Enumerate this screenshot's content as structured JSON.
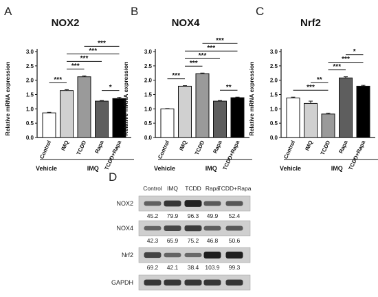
{
  "panels": {
    "A": "A",
    "B": "B",
    "C": "C",
    "D": "D"
  },
  "chart_data": [
    {
      "type": "bar",
      "panel": "A",
      "title": "NOX2",
      "ylabel": "Relative mRNA expression",
      "ylim": [
        0,
        3.0
      ],
      "yticks": [
        "0.0",
        "0.5",
        "1.0",
        "1.5",
        "2.0",
        "2.5",
        "3.0"
      ],
      "categories": [
        "Control",
        "IMQ",
        "TCDD",
        "Rapa",
        "TCDD+Rapa"
      ],
      "values": [
        0.86,
        1.64,
        2.12,
        1.27,
        1.36
      ],
      "errors": [
        0.02,
        0.03,
        0.03,
        0.02,
        0.04
      ],
      "colors": [
        "#ffffff",
        "#d0d0d0",
        "#9a9a9a",
        "#5e5e5e",
        "#000000"
      ],
      "significance": [
        {
          "from": 0,
          "to": 1,
          "label": "***"
        },
        {
          "from": 1,
          "to": 2,
          "label": "***"
        },
        {
          "from": 1,
          "to": 3,
          "label": "***"
        },
        {
          "from": 1,
          "to": 4,
          "label": "***"
        },
        {
          "from": 2,
          "to": 4,
          "label": "***"
        },
        {
          "from": 3,
          "to": 4,
          "label": "*"
        }
      ],
      "groups": {
        "vehicle": "Vehicle",
        "imq": "IMQ"
      }
    },
    {
      "type": "bar",
      "panel": "B",
      "title": "NOX4",
      "ylabel": "Relative mRNA expression",
      "ylim": [
        0,
        3.0
      ],
      "yticks": [
        "0.0",
        "0.5",
        "1.0",
        "1.5",
        "2.0",
        "2.5",
        "3.0"
      ],
      "categories": [
        "Control",
        "IMQ",
        "TCDD",
        "Rapa",
        "TCDD+Rapa"
      ],
      "values": [
        1.0,
        1.79,
        2.23,
        1.27,
        1.39
      ],
      "errors": [
        0.01,
        0.02,
        0.02,
        0.02,
        0.02
      ],
      "colors": [
        "#ffffff",
        "#d0d0d0",
        "#9a9a9a",
        "#5e5e5e",
        "#000000"
      ],
      "significance": [
        {
          "from": 0,
          "to": 1,
          "label": "***"
        },
        {
          "from": 1,
          "to": 2,
          "label": "***"
        },
        {
          "from": 1,
          "to": 3,
          "label": "***"
        },
        {
          "from": 1,
          "to": 4,
          "label": "***"
        },
        {
          "from": 2,
          "to": 4,
          "label": "***"
        },
        {
          "from": 3,
          "to": 4,
          "label": "**"
        }
      ],
      "groups": {
        "vehicle": "Vehicle",
        "imq": "IMQ"
      }
    },
    {
      "type": "bar",
      "panel": "C",
      "title": "Nrf2",
      "ylabel": "Relative mRNA expression",
      "ylim": [
        0,
        3.0
      ],
      "yticks": [
        "0.0",
        "0.5",
        "1.0",
        "1.5",
        "2.0",
        "2.5",
        "3.0"
      ],
      "categories": [
        "Control",
        "IMQ",
        "TCDD",
        "Rapa",
        "TCDD+Rapa"
      ],
      "values": [
        1.38,
        1.19,
        0.82,
        2.08,
        1.79
      ],
      "errors": [
        0.03,
        0.08,
        0.03,
        0.04,
        0.03
      ],
      "colors": [
        "#ffffff",
        "#d0d0d0",
        "#9a9a9a",
        "#5e5e5e",
        "#000000"
      ],
      "significance": [
        {
          "from": 0,
          "to": 2,
          "label": "***"
        },
        {
          "from": 1,
          "to": 2,
          "label": "**"
        },
        {
          "from": 2,
          "to": 3,
          "label": "***"
        },
        {
          "from": 2,
          "to": 4,
          "label": "***"
        },
        {
          "from": 3,
          "to": 4,
          "label": "*"
        }
      ],
      "groups": {
        "vehicle": "Vehicle",
        "imq": "IMQ"
      }
    }
  ],
  "blot": {
    "columns": [
      "Control",
      "IMQ",
      "TCDD",
      "Rapa",
      "TCDD+Rapa"
    ],
    "rows": [
      {
        "label": "NOX2",
        "values": [
          "45.2",
          "79.9",
          "96.3",
          "49.9",
          "52.4"
        ],
        "intensity": [
          0.452,
          0.799,
          0.963,
          0.499,
          0.524
        ]
      },
      {
        "label": "NOX4",
        "values": [
          "42.3",
          "65.9",
          "75.2",
          "46.8",
          "50.6"
        ],
        "intensity": [
          0.423,
          0.659,
          0.752,
          0.468,
          0.506
        ]
      },
      {
        "label": "Nrf2",
        "values": [
          "69.2",
          "42.1",
          "38.4",
          "103.9",
          "99.3"
        ],
        "intensity": [
          0.692,
          0.421,
          0.384,
          1.039,
          0.993
        ]
      },
      {
        "label": "GAPDH",
        "values": [],
        "intensity": [
          0.8,
          0.8,
          0.8,
          0.8,
          0.8
        ]
      }
    ]
  }
}
